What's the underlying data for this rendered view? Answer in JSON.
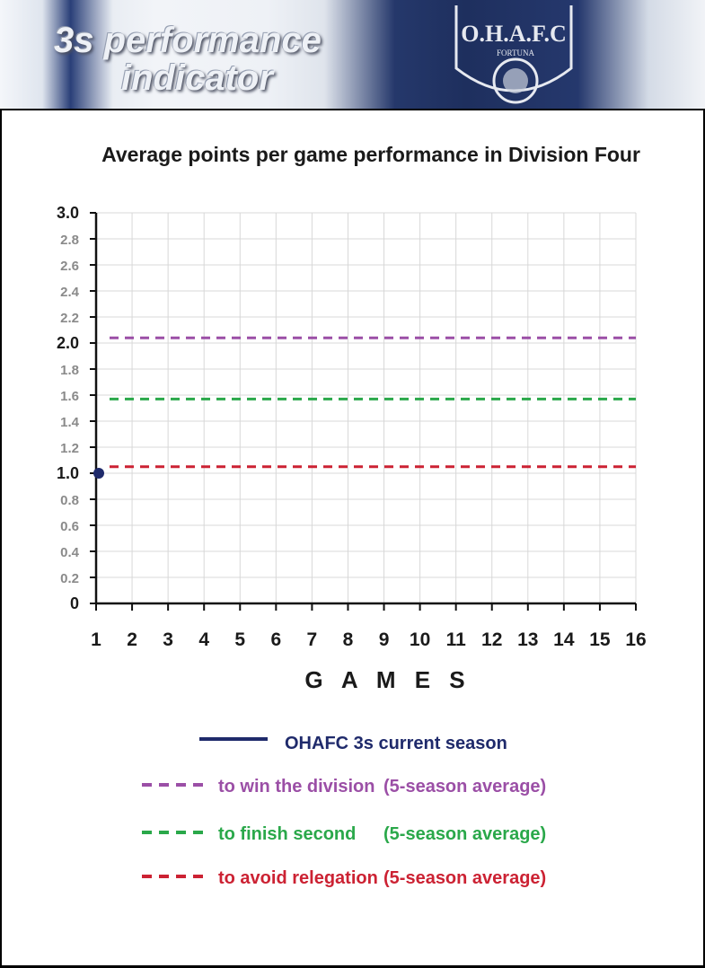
{
  "banner": {
    "title_line1": "3s performance",
    "title_line2": "indicator",
    "crest_text": "O.H.A.F.C",
    "crest_motto": "FORTUNA"
  },
  "colors": {
    "season": "#1f2a6b",
    "win": "#9b4fa6",
    "second": "#2aa84a",
    "relegation": "#cc2233",
    "grid": "#d8d8d8"
  },
  "chart_data": {
    "type": "line",
    "title": "Average points per game performance in Division Four",
    "xlabel": "G A M E S",
    "ylabel": "",
    "x": [
      1,
      2,
      3,
      4,
      5,
      6,
      7,
      8,
      9,
      10,
      11,
      12,
      13,
      14,
      15,
      16
    ],
    "xlim": [
      1,
      16
    ],
    "ylim": [
      0,
      3.0
    ],
    "yticks": [
      0,
      0.2,
      0.4,
      0.6,
      0.8,
      1.0,
      1.2,
      1.4,
      1.6,
      1.8,
      2.0,
      2.2,
      2.4,
      2.6,
      2.8,
      3.0
    ],
    "ytick_labels": [
      "0",
      "0.2",
      "0.4",
      "0.6",
      "0.8",
      "1.0",
      "1.2",
      "1.4",
      "1.6",
      "1.8",
      "2.0",
      "2.2",
      "2.4",
      "2.6",
      "2.8",
      "3.0"
    ],
    "major_yticks": [
      "0",
      "1.0",
      "2.0",
      "3.0"
    ],
    "grid": true,
    "legend_position": "bottom",
    "series": [
      {
        "name": "OHAFC 3s current season",
        "style": "solid",
        "color": "#1f2a6b",
        "x": [
          1
        ],
        "y": [
          1.0
        ]
      }
    ],
    "reference_lines": [
      {
        "name": "to win the division",
        "note": "(5-season average)",
        "y": 2.04,
        "color": "#9b4fa6",
        "style": "dashed"
      },
      {
        "name": "to finish second",
        "note": "(5-season average)",
        "y": 1.57,
        "color": "#2aa84a",
        "style": "dashed"
      },
      {
        "name": "to avoid relegation",
        "note": "(5-season average)",
        "y": 1.05,
        "color": "#cc2233",
        "style": "dashed"
      }
    ]
  }
}
